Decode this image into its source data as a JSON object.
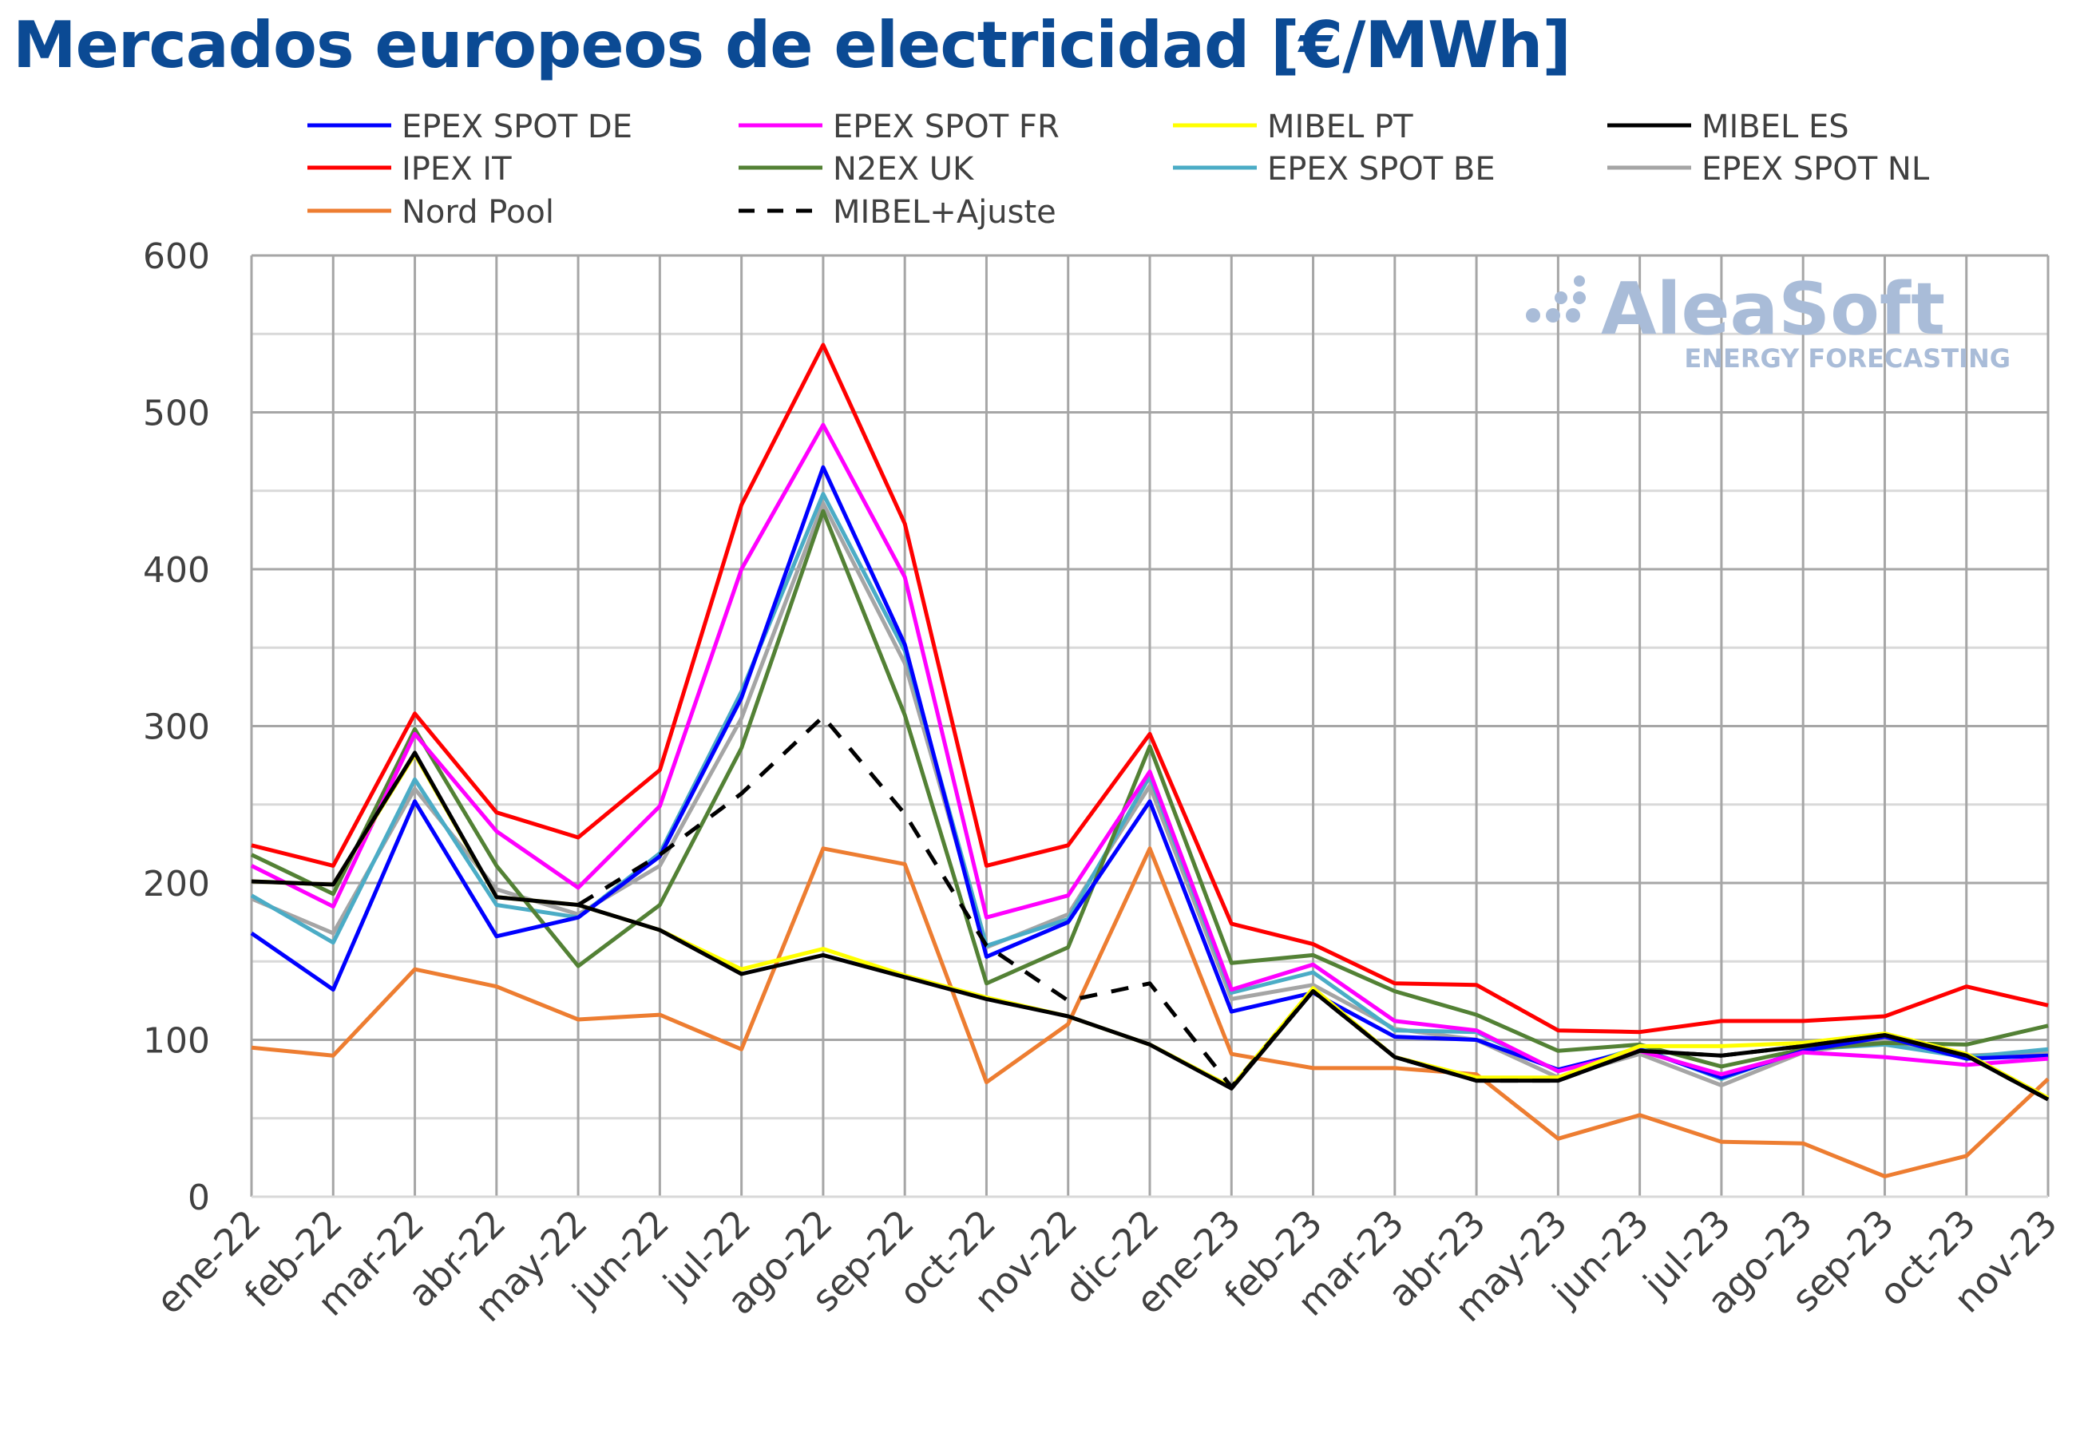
{
  "chart_data": {
    "type": "line",
    "title": "Mercados europeos de electricidad [€/MWh]",
    "xlabel": "",
    "ylabel": "",
    "ylim": [
      0,
      600
    ],
    "yticks": [
      0,
      100,
      200,
      300,
      400,
      500,
      600
    ],
    "grid": true,
    "legend_position": "top",
    "categories": [
      "ene-22",
      "feb-22",
      "mar-22",
      "abr-22",
      "may-22",
      "jun-22",
      "jul-22",
      "ago-22",
      "sep-22",
      "oct-22",
      "nov-22",
      "dic-22",
      "ene-23",
      "feb-23",
      "mar-23",
      "abr-23",
      "may-23",
      "jun-23",
      "jul-23",
      "ago-23",
      "sep-23",
      "oct-23",
      "nov-23"
    ],
    "series": [
      {
        "name": "EPEX SPOT DE",
        "color": "#0000ff",
        "dash": false,
        "values": [
          168,
          132,
          252,
          166,
          178,
          217,
          318,
          465,
          352,
          153,
          175,
          252,
          118,
          130,
          102,
          100,
          81,
          94,
          76,
          93,
          102,
          88,
          90
        ]
      },
      {
        "name": "EPEX SPOT FR",
        "color": "#ff00ff",
        "dash": false,
        "values": [
          211,
          185,
          295,
          233,
          197,
          249,
          400,
          492,
          395,
          178,
          192,
          271,
          132,
          148,
          112,
          106,
          80,
          93,
          78,
          92,
          89,
          84,
          88
        ]
      },
      {
        "name": "MIBEL PT",
        "color": "#ffff00",
        "dash": false,
        "values": [
          201,
          199,
          282,
          191,
          186,
          170,
          145,
          158,
          141,
          127,
          115,
          97,
          70,
          133,
          89,
          76,
          76,
          96,
          96,
          98,
          104,
          91,
          63
        ]
      },
      {
        "name": "MIBEL ES",
        "color": "#000000",
        "dash": false,
        "values": [
          201,
          199,
          283,
          191,
          186,
          170,
          142,
          154,
          140,
          126,
          115,
          97,
          69,
          131,
          89,
          74,
          74,
          93,
          90,
          96,
          103,
          90,
          62
        ]
      },
      {
        "name": "IPEX IT",
        "color": "#ff0000",
        "dash": false,
        "values": [
          224,
          211,
          308,
          245,
          229,
          272,
          441,
          543,
          429,
          211,
          224,
          295,
          174,
          161,
          136,
          135,
          106,
          105,
          112,
          112,
          115,
          134,
          122
        ]
      },
      {
        "name": "N2EX UK",
        "color": "#538135",
        "dash": false,
        "values": [
          218,
          193,
          298,
          211,
          147,
          186,
          286,
          437,
          307,
          136,
          159,
          287,
          149,
          154,
          131,
          116,
          93,
          97,
          83,
          94,
          98,
          97,
          109
        ]
      },
      {
        "name": "EPEX SPOT BE",
        "color": "#4bacc6",
        "dash": false,
        "values": [
          192,
          162,
          266,
          186,
          178,
          219,
          322,
          448,
          348,
          160,
          177,
          268,
          130,
          143,
          106,
          105,
          80,
          95,
          75,
          94,
          97,
          89,
          94
        ]
      },
      {
        "name": "EPEX SPOT NL",
        "color": "#a5a5a5",
        "dash": false,
        "values": [
          190,
          168,
          260,
          196,
          180,
          211,
          305,
          442,
          340,
          159,
          180,
          262,
          126,
          135,
          107,
          100,
          76,
          91,
          71,
          92,
          100,
          90,
          92
        ]
      },
      {
        "name": "Nord Pool",
        "color": "#ed7d31",
        "dash": false,
        "values": [
          95,
          90,
          145,
          134,
          113,
          116,
          94,
          222,
          212,
          73,
          110,
          222,
          91,
          82,
          82,
          78,
          37,
          52,
          35,
          34,
          13,
          26,
          75
        ]
      },
      {
        "name": "MIBEL+Ajuste",
        "color": "#000000",
        "dash": true,
        "values": [
          null,
          null,
          null,
          null,
          186,
          218,
          257,
          306,
          244,
          160,
          125,
          136,
          70,
          131,
          89,
          74,
          74,
          93,
          90,
          96,
          103,
          90,
          62
        ]
      }
    ]
  },
  "logo": {
    "name": "AleaSoft",
    "tagline": "ENERGY FORECASTING"
  }
}
